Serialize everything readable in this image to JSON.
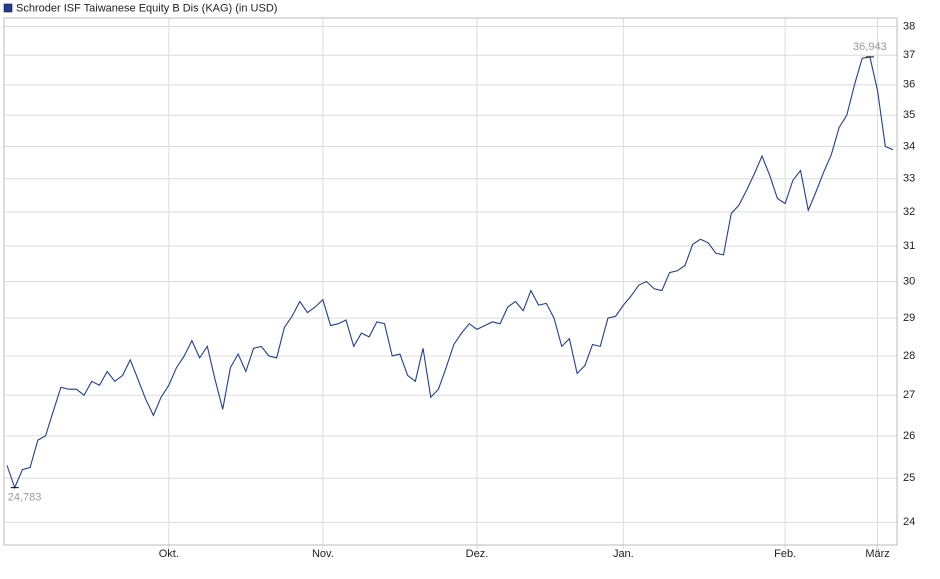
{
  "chart_data": {
    "type": "line",
    "categories": [
      null,
      null,
      null,
      null,
      null,
      null,
      null,
      null,
      null,
      null,
      null,
      null,
      null,
      null,
      null,
      null,
      null,
      null,
      null,
      null,
      null,
      "Okt.",
      null,
      null,
      null,
      null,
      null,
      null,
      null,
      null,
      null,
      null,
      null,
      null,
      null,
      null,
      null,
      null,
      null,
      null,
      null,
      "Nov.",
      null,
      null,
      null,
      null,
      null,
      null,
      null,
      null,
      null,
      null,
      null,
      null,
      null,
      null,
      null,
      null,
      null,
      null,
      null,
      "Dez.",
      null,
      null,
      null,
      null,
      null,
      null,
      null,
      null,
      null,
      null,
      null,
      null,
      null,
      null,
      null,
      null,
      null,
      null,
      "Jan.",
      null,
      null,
      null,
      null,
      null,
      null,
      null,
      null,
      null,
      null,
      null,
      null,
      null,
      null,
      null,
      null,
      null,
      null,
      null,
      null,
      "Feb.",
      null,
      null,
      null,
      null,
      null,
      null,
      null,
      null,
      null,
      null,
      null,
      "März",
      null,
      null
    ],
    "series": [
      {
        "name": "Schroder ISF Taiwanese Equity B Dis (KAG) (in USD)",
        "color": "#1f3f95",
        "values": [
          25.3,
          24.783,
          25.2,
          25.25,
          25.9,
          26.0,
          26.6,
          27.2,
          27.15,
          27.15,
          27.0,
          27.35,
          27.25,
          27.6,
          27.35,
          27.5,
          27.9,
          27.4,
          26.9,
          26.5,
          26.95,
          27.25,
          27.7,
          28.0,
          28.4,
          27.95,
          28.25,
          27.4,
          26.65,
          27.7,
          28.05,
          27.6,
          28.2,
          28.25,
          28.0,
          27.95,
          28.75,
          29.05,
          29.45,
          29.15,
          29.3,
          29.5,
          28.8,
          28.85,
          28.95,
          28.25,
          28.6,
          28.5,
          28.9,
          28.85,
          28.0,
          28.05,
          27.5,
          27.35,
          28.2,
          26.95,
          27.15,
          27.7,
          28.3,
          28.6,
          28.85,
          28.7,
          28.8,
          28.9,
          28.85,
          29.3,
          29.45,
          29.2,
          29.75,
          29.35,
          29.4,
          29.0,
          28.25,
          28.45,
          27.55,
          27.75,
          28.3,
          28.25,
          29.0,
          29.05,
          29.35,
          29.6,
          29.9,
          30.0,
          29.8,
          29.75,
          30.25,
          30.3,
          30.45,
          31.05,
          31.2,
          31.1,
          30.8,
          30.75,
          31.95,
          32.2,
          32.65,
          33.15,
          33.7,
          33.1,
          32.4,
          32.25,
          32.95,
          33.25,
          32.05,
          32.6,
          33.2,
          33.75,
          34.6,
          35.0,
          36.0,
          36.9,
          36.943,
          35.8,
          34.0,
          33.9
        ],
        "value_labels": [
          null,
          "24,783",
          null,
          null,
          null,
          null,
          null,
          null,
          null,
          null,
          null,
          null,
          null,
          null,
          null,
          null,
          null,
          null,
          null,
          null,
          null,
          null,
          null,
          null,
          null,
          null,
          null,
          null,
          null,
          null,
          null,
          null,
          null,
          null,
          null,
          null,
          null,
          null,
          null,
          null,
          null,
          null,
          null,
          null,
          null,
          null,
          null,
          null,
          null,
          null,
          null,
          null,
          null,
          null,
          null,
          null,
          null,
          null,
          null,
          null,
          null,
          null,
          null,
          null,
          null,
          null,
          null,
          null,
          null,
          null,
          null,
          null,
          null,
          null,
          null,
          null,
          null,
          null,
          null,
          null,
          null,
          null,
          null,
          null,
          null,
          null,
          null,
          null,
          null,
          null,
          null,
          null,
          null,
          null,
          null,
          null,
          null,
          null,
          null,
          null,
          null,
          null,
          null,
          null,
          null,
          null,
          null,
          null,
          null,
          null,
          null,
          null,
          "36,943",
          null,
          null,
          null
        ]
      }
    ],
    "ylim": [
      23.5,
      38.3
    ],
    "yticks": [
      24,
      25,
      26,
      27,
      28,
      29,
      30,
      31,
      32,
      33,
      34,
      35,
      36,
      37,
      38
    ],
    "log_scale": true,
    "grid": true
  }
}
